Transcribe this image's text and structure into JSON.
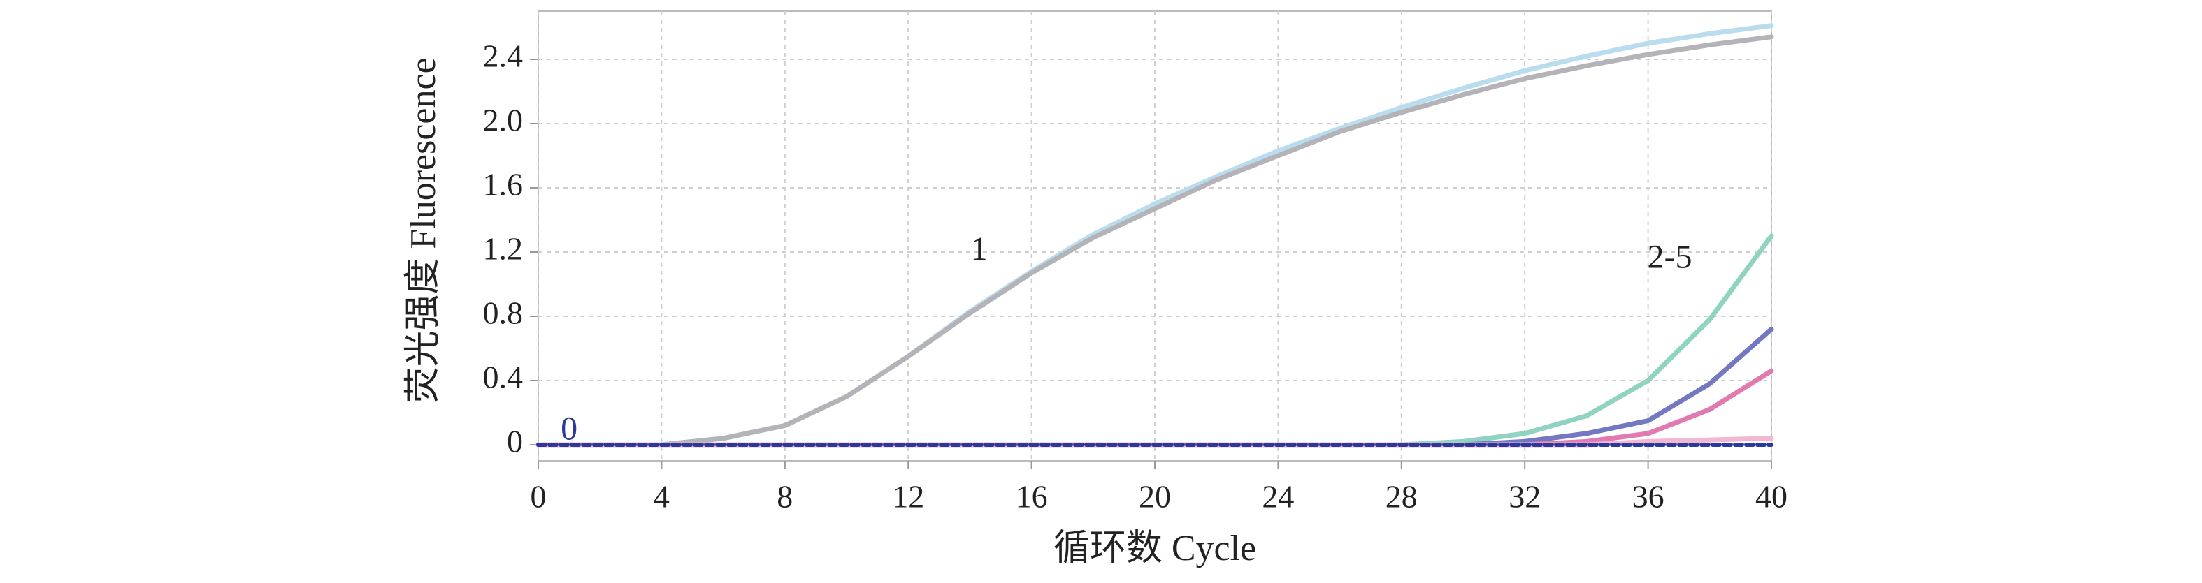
{
  "chart_data": {
    "type": "line",
    "x_label": "循环数 Cycle",
    "y_label": "荧光强度 Fluorescence",
    "annotations": [
      "1",
      "2-5",
      "0"
    ],
    "annotation_colors": [
      "#222222",
      "#222222",
      "#2a3a9a"
    ],
    "x": [
      0,
      2,
      4,
      6,
      8,
      10,
      12,
      14,
      16,
      18,
      20,
      22,
      24,
      26,
      28,
      30,
      32,
      34,
      36,
      38,
      40
    ],
    "series": [
      {
        "color": "#b9dcef",
        "values": [
          0,
          0,
          0,
          0.04,
          0.12,
          0.3,
          0.55,
          0.83,
          1.08,
          1.31,
          1.5,
          1.67,
          1.83,
          1.97,
          2.1,
          2.22,
          2.33,
          2.42,
          2.5,
          2.56,
          2.61
        ]
      },
      {
        "color": "#b4b4b8",
        "values": [
          0,
          0,
          0,
          0.04,
          0.12,
          0.3,
          0.55,
          0.82,
          1.07,
          1.29,
          1.47,
          1.65,
          1.8,
          1.95,
          2.07,
          2.18,
          2.28,
          2.36,
          2.43,
          2.49,
          2.54
        ]
      },
      {
        "color": "#8fd3c0",
        "values": [
          0,
          0,
          0,
          0,
          0,
          0,
          0,
          0,
          0,
          0,
          0,
          0,
          0,
          0,
          0,
          0.02,
          0.07,
          0.18,
          0.4,
          0.78,
          1.3
        ]
      },
      {
        "color": "#7478c0",
        "values": [
          0,
          0,
          0,
          0,
          0,
          0,
          0,
          0,
          0,
          0,
          0,
          0,
          0,
          0,
          0,
          0,
          0.02,
          0.07,
          0.15,
          0.38,
          0.72
        ]
      },
      {
        "color": "#e07ab0",
        "values": [
          0,
          0,
          0,
          0,
          0,
          0,
          0,
          0,
          0,
          0,
          0,
          0,
          0,
          0,
          0,
          0,
          0,
          0.02,
          0.07,
          0.22,
          0.46
        ]
      },
      {
        "color": "#f2b8cf",
        "values": [
          0,
          0,
          0,
          0,
          0,
          0,
          0,
          0,
          0,
          0,
          0,
          0,
          0,
          0,
          0,
          0,
          0,
          0,
          0.02,
          0.03,
          0.04
        ]
      },
      {
        "color": "#2a3a9a",
        "dashed": true,
        "values": [
          0,
          0,
          0,
          0,
          0,
          0,
          0,
          0,
          0,
          0,
          0,
          0,
          0,
          0,
          0,
          0,
          0,
          0,
          0,
          0,
          0
        ]
      }
    ],
    "xlim": [
      0,
      40
    ],
    "xticks": [
      0,
      4,
      8,
      12,
      16,
      20,
      24,
      28,
      32,
      36,
      40
    ],
    "ylim": [
      -0.1,
      2.7
    ],
    "yticks": [
      0,
      0.4,
      0.8,
      1.2,
      1.6,
      {
        "value": 2,
        "label": "2.0"
      },
      2.4
    ],
    "grid": true
  }
}
